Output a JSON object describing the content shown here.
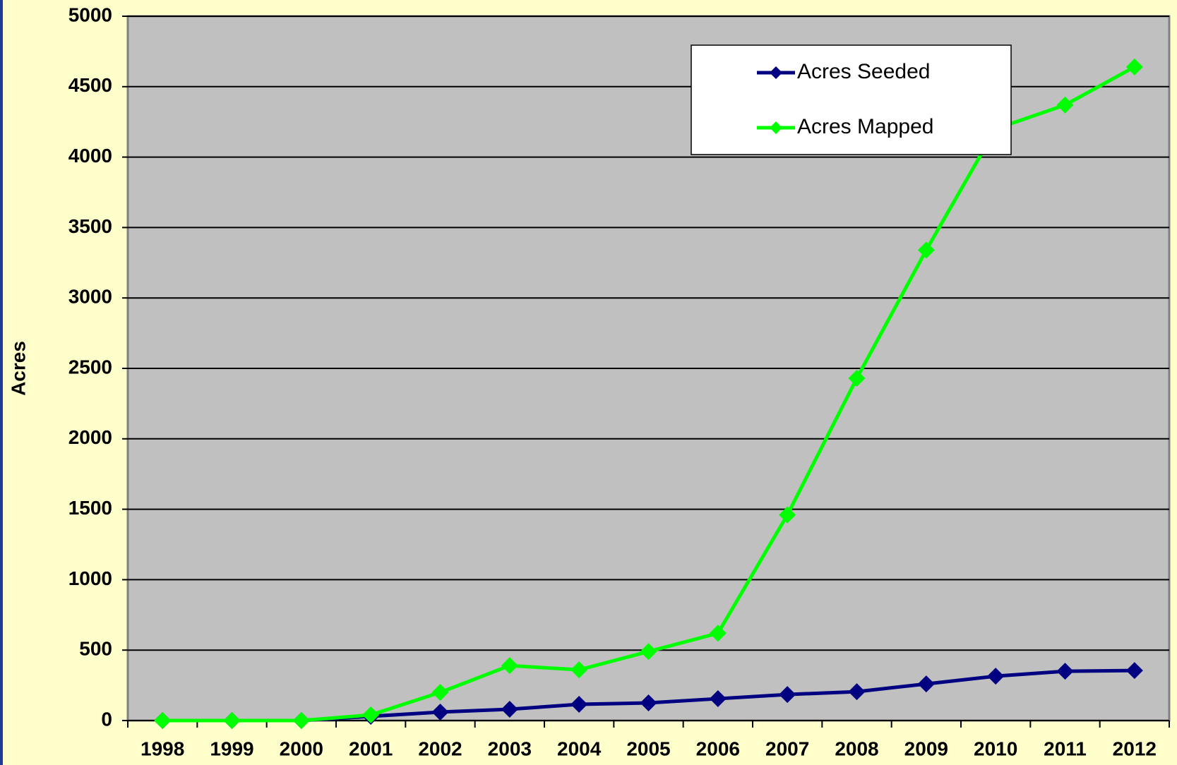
{
  "chart_data": {
    "type": "line",
    "y_label": "Acres",
    "categories": [
      "1998",
      "1999",
      "2000",
      "2001",
      "2002",
      "2003",
      "2004",
      "2005",
      "2006",
      "2007",
      "2008",
      "2009",
      "2010",
      "2011",
      "2012"
    ],
    "series": [
      {
        "name": "Acres Seeded",
        "color": "#000080",
        "values": [
          0,
          0,
          0,
          30,
          60,
          80,
          115,
          125,
          155,
          185,
          205,
          260,
          315,
          350,
          355
        ]
      },
      {
        "name": "Acres Mapped",
        "color": "#00ff00",
        "values": [
          0,
          0,
          0,
          40,
          200,
          390,
          360,
          490,
          620,
          1460,
          2430,
          3340,
          4200,
          4370,
          4640
        ]
      }
    ],
    "ylim": [
      0,
      5000
    ],
    "yticks": [
      0,
      500,
      1000,
      1500,
      2000,
      2500,
      3000,
      3500,
      4000,
      4500,
      5000
    ],
    "grid": true
  }
}
